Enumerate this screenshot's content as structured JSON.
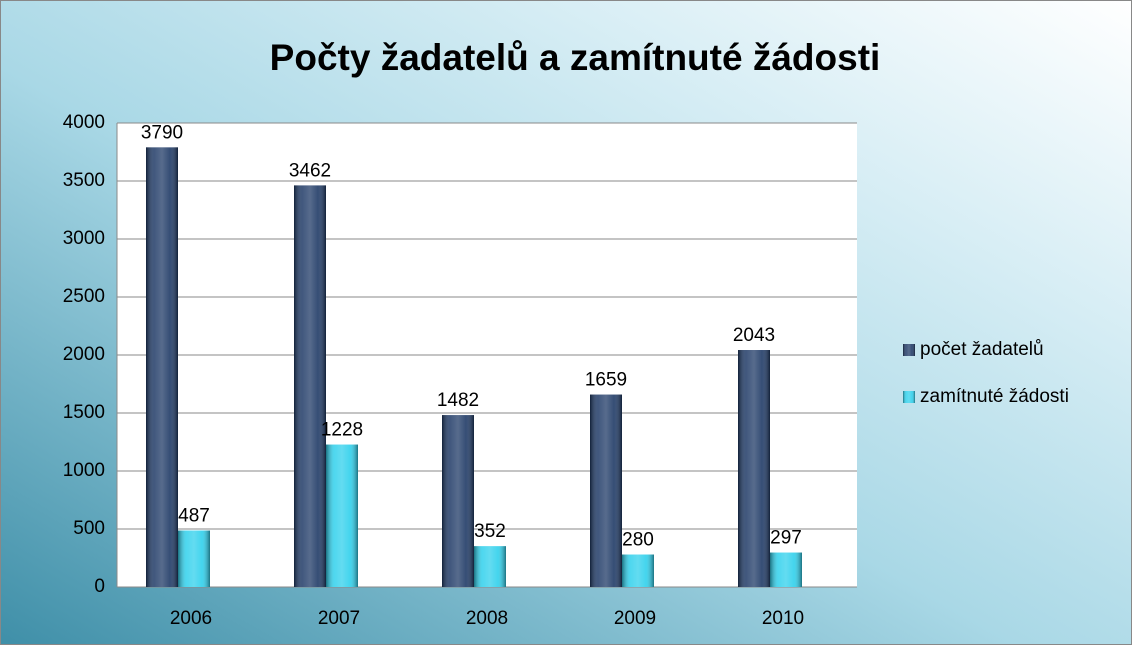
{
  "chart_data": {
    "type": "bar",
    "title": "Počty žadatelů a zamítnuté žádosti",
    "categories": [
      "2006",
      "2007",
      "2008",
      "2009",
      "2010"
    ],
    "series": [
      {
        "name": "počet žadatelů",
        "color": "#1f3a66",
        "values": [
          3790,
          3462,
          1482,
          1659,
          2043
        ]
      },
      {
        "name": "zamítnuté žádosti",
        "color": "#2fd0ec",
        "values": [
          487,
          1228,
          352,
          280,
          297
        ]
      }
    ],
    "ylim": [
      0,
      4000
    ],
    "yticks": [
      0,
      500,
      1000,
      1500,
      2000,
      2500,
      3000,
      3500,
      4000
    ],
    "grid": true,
    "legend": "right"
  }
}
